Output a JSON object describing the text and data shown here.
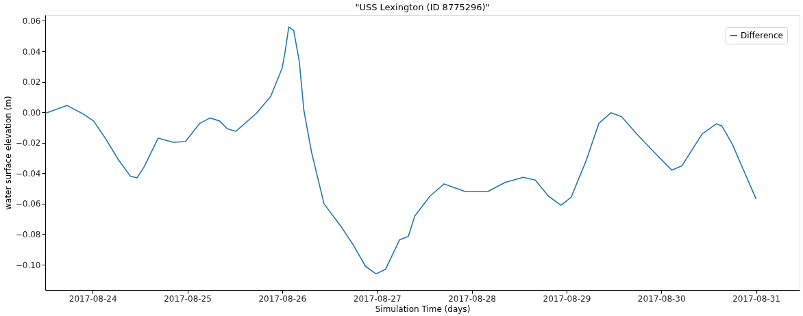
{
  "chart_data": {
    "type": "line",
    "title": "\"USS Lexington (ID 8775296)\"",
    "xlabel": "Simulation Time (days)",
    "ylabel": "water surface elevation (m)",
    "x": [
      "2017-08-23T12:05",
      "2017-08-23T17:30",
      "2017-08-23T21:50",
      "2017-08-24T00:15",
      "2017-08-24T03:20",
      "2017-08-24T06:30",
      "2017-08-24T09:35",
      "2017-08-24T11:15",
      "2017-08-24T13:00",
      "2017-08-24T16:35",
      "2017-08-24T20:25",
      "2017-08-24T23:30",
      "2017-08-25T03:05",
      "2017-08-25T05:45",
      "2017-08-25T08:10",
      "2017-08-25T10:05",
      "2017-08-25T12:15",
      "2017-08-25T17:30",
      "2017-08-25T21:05",
      "2017-08-26T00:00",
      "2017-08-26T00:45",
      "2017-08-26T01:40",
      "2017-08-26T02:55",
      "2017-08-26T04:20",
      "2017-08-26T05:30",
      "2017-08-26T07:25",
      "2017-08-26T10:35",
      "2017-08-26T14:55",
      "2017-08-26T18:00",
      "2017-08-26T21:05",
      "2017-08-26T23:45",
      "2017-08-27T02:10",
      "2017-08-27T05:45",
      "2017-08-27T07:55",
      "2017-08-27T09:35",
      "2017-08-27T13:25",
      "2017-08-27T17:00",
      "2017-08-27T22:20",
      "2017-08-28T04:05",
      "2017-08-28T08:25",
      "2017-08-28T13:00",
      "2017-08-28T16:05",
      "2017-08-28T19:25",
      "2017-08-28T22:35",
      "2017-08-29T01:10",
      "2017-08-29T05:00",
      "2017-08-29T08:10",
      "2017-08-29T11:15",
      "2017-08-29T13:55",
      "2017-08-29T17:45",
      "2017-08-29T21:35",
      "2017-08-30T02:40",
      "2017-08-30T05:15",
      "2017-08-30T10:20",
      "2017-08-30T13:55",
      "2017-08-30T15:20",
      "2017-08-30T18:00",
      "2017-08-31T00:00"
    ],
    "series": [
      {
        "name": "Difference",
        "color": "#1f77b4",
        "values": [
          -0.0006,
          0.0045,
          -0.0014,
          -0.0057,
          -0.0175,
          -0.031,
          -0.042,
          -0.043,
          -0.036,
          -0.017,
          -0.0197,
          -0.0192,
          -0.0074,
          -0.0037,
          -0.0057,
          -0.0108,
          -0.0125,
          -0.0006,
          0.0104,
          0.029,
          0.04,
          0.056,
          0.0536,
          0.0332,
          0.0011,
          -0.026,
          -0.06,
          -0.075,
          -0.087,
          -0.101,
          -0.106,
          -0.103,
          -0.0836,
          -0.0815,
          -0.068,
          -0.055,
          -0.047,
          -0.052,
          -0.052,
          -0.046,
          -0.0427,
          -0.0445,
          -0.055,
          -0.061,
          -0.0557,
          -0.0315,
          -0.0073,
          -0.0003,
          -0.0028,
          -0.0142,
          -0.0246,
          -0.038,
          -0.035,
          -0.0142,
          -0.0076,
          -0.009,
          -0.0211,
          -0.057
        ]
      }
    ],
    "xlim": [
      "2017-08-23T12:00",
      "2017-08-31T11:00"
    ],
    "xticks": [
      "2017-08-24",
      "2017-08-25",
      "2017-08-26",
      "2017-08-27",
      "2017-08-28",
      "2017-08-29",
      "2017-08-30",
      "2017-08-31"
    ],
    "ylim": [
      -0.1166,
      0.0638
    ],
    "yticks": [
      {
        "value": 0.06,
        "label": "0.06"
      },
      {
        "value": 0.04,
        "label": "0.04"
      },
      {
        "value": 0.02,
        "label": "0.02"
      },
      {
        "value": 0.0,
        "label": "0.00"
      },
      {
        "value": -0.02,
        "label": "−0.02"
      },
      {
        "value": -0.04,
        "label": "−0.04"
      },
      {
        "value": -0.06,
        "label": "−0.06"
      },
      {
        "value": -0.08,
        "label": "−0.08"
      },
      {
        "value": -0.1,
        "label": "−0.10"
      }
    ],
    "legend": "top right",
    "grid": false,
    "marker": "none",
    "line_style": "solid"
  }
}
